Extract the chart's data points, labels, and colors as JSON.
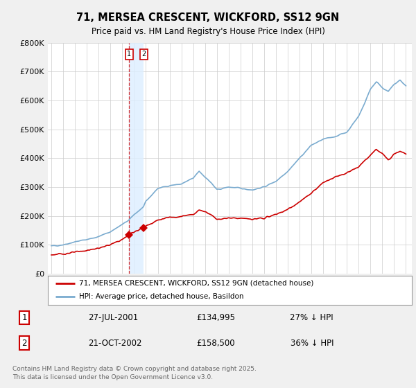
{
  "title_line1": "71, MERSEA CRESCENT, WICKFORD, SS12 9GN",
  "title_line2": "Price paid vs. HM Land Registry's House Price Index (HPI)",
  "legend_label_red": "71, MERSEA CRESCENT, WICKFORD, SS12 9GN (detached house)",
  "legend_label_blue": "HPI: Average price, detached house, Basildon",
  "footnote": "Contains HM Land Registry data © Crown copyright and database right 2025.\nThis data is licensed under the Open Government Licence v3.0.",
  "transactions": [
    {
      "num": 1,
      "date": "27-JUL-2001",
      "price": "£134,995",
      "hpi": "27% ↓ HPI",
      "year": 2001.57
    },
    {
      "num": 2,
      "date": "21-OCT-2002",
      "price": "£158,500",
      "hpi": "36% ↓ HPI",
      "year": 2002.8
    }
  ],
  "transaction_prices": [
    134995,
    158500
  ],
  "transaction_years": [
    2001.57,
    2002.8
  ],
  "background_color": "#f0f0f0",
  "plot_bg_color": "#ffffff",
  "red_color": "#cc0000",
  "blue_color": "#7aabcf",
  "highlight_color": "#ddeeff",
  "ylim": [
    0,
    800000
  ],
  "yticks": [
    0,
    100000,
    200000,
    300000,
    400000,
    500000,
    600000,
    700000,
    800000
  ],
  "xlim_min": 1994.7,
  "xlim_max": 2025.5
}
